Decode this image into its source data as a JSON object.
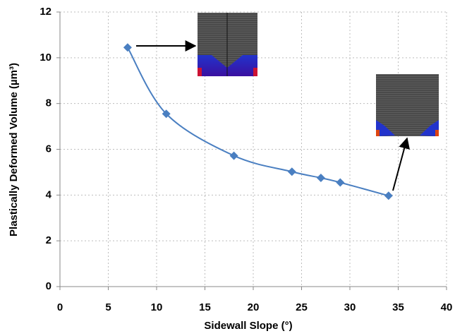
{
  "chart_data": {
    "type": "line",
    "x_label": "Sidewall Slope (°)",
    "y_label": "Plastically Deformed Volume (µm³)",
    "x": [
      7,
      11,
      18,
      24,
      27,
      29,
      34
    ],
    "series": [
      {
        "color": "#4a7fc1",
        "values": [
          10.45,
          7.55,
          5.72,
          5.02,
          4.75,
          4.55,
          3.97
        ]
      }
    ],
    "xlim": [
      0,
      40
    ],
    "xticks": [
      0,
      5,
      10,
      15,
      20,
      25,
      30,
      35,
      40
    ],
    "ylim": [
      0,
      12
    ],
    "yticks": [
      0,
      2,
      4,
      6,
      8,
      10,
      12
    ],
    "grid": true
  }
}
